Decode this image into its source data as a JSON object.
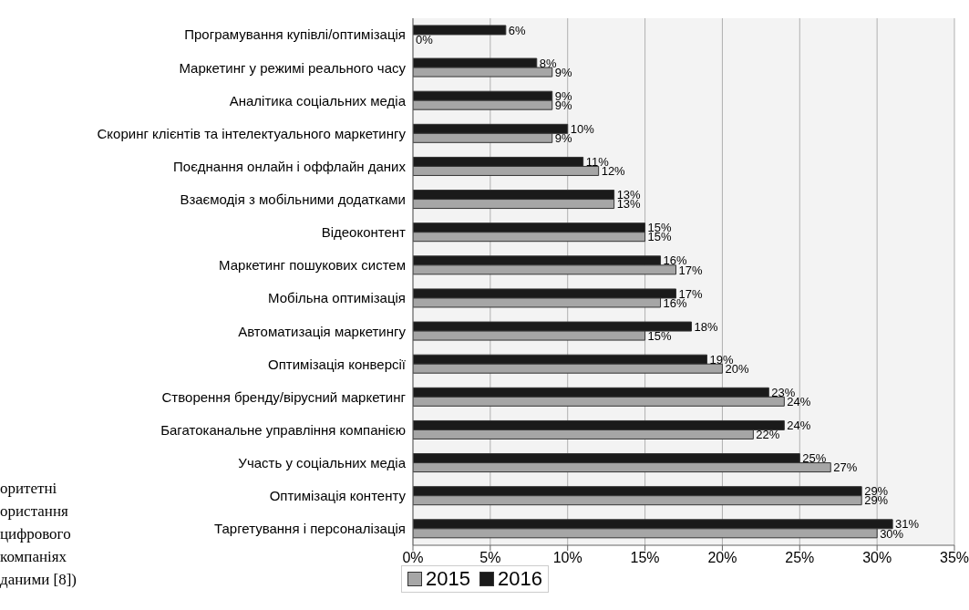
{
  "chart_data": {
    "type": "bar",
    "orientation": "horizontal",
    "categories": [
      "Програмування купівлі/оптимізація",
      "Маркетинг у режимі реального часу",
      "Аналітика соціальних медіа",
      "Скоринг клієнтів та інтелектуального маркетингу",
      "Поєднання онлайн і оффлайн даних",
      "Взаємодія з мобільними додатками",
      "Відеоконтент",
      "Маркетинг пошукових систем",
      "Мобільна оптимізація ",
      "Автоматизація маркетингу",
      "Оптимізація конверсії",
      "Створення бренду/вірусний маркетинг",
      "Багатоканальне управління компанією",
      "Участь у соціальних медіа",
      "Оптимізація контенту",
      "Таргетування і персоналізація"
    ],
    "series": [
      {
        "name": "2015",
        "color": "#a6a6a6",
        "values": [
          0,
          9,
          9,
          9,
          12,
          13,
          15,
          17,
          16,
          15,
          20,
          24,
          22,
          27,
          29,
          30
        ],
        "value_labels": [
          "0%",
          "9%",
          "9%",
          "9%",
          "12%",
          "13%",
          "15%",
          "17%",
          "16%",
          "15%",
          "20%",
          "24%",
          "22%",
          "27%",
          "29%",
          "30%"
        ]
      },
      {
        "name": "2016",
        "color": "#1a1a1a",
        "values": [
          6,
          8,
          9,
          10,
          11,
          13,
          15,
          16,
          17,
          18,
          19,
          23,
          24,
          25,
          29,
          31
        ],
        "value_labels": [
          "6%",
          "8%",
          "9%",
          "10%",
          "11%",
          "13%",
          "15%",
          "16%",
          "17%",
          "18%",
          "19%",
          "23%",
          "24%",
          "25%",
          "29%",
          "31%"
        ]
      }
    ],
    "xlim": [
      0,
      35
    ],
    "xticks": [
      {
        "value": 0,
        "label": "0%"
      },
      {
        "value": 5,
        "label": "5%"
      },
      {
        "value": 10,
        "label": "10%"
      },
      {
        "value": 15,
        "label": "15%"
      },
      {
        "value": 20,
        "label": "20%"
      },
      {
        "value": 25,
        "label": "25%"
      },
      {
        "value": 30,
        "label": "30%"
      },
      {
        "value": 35,
        "label": "35%"
      }
    ],
    "grid": "x",
    "legend": "bottom left",
    "annotations": [
      "оритетні\nористання\nцифрового\nкомпаніях\nданими [8])"
    ]
  }
}
